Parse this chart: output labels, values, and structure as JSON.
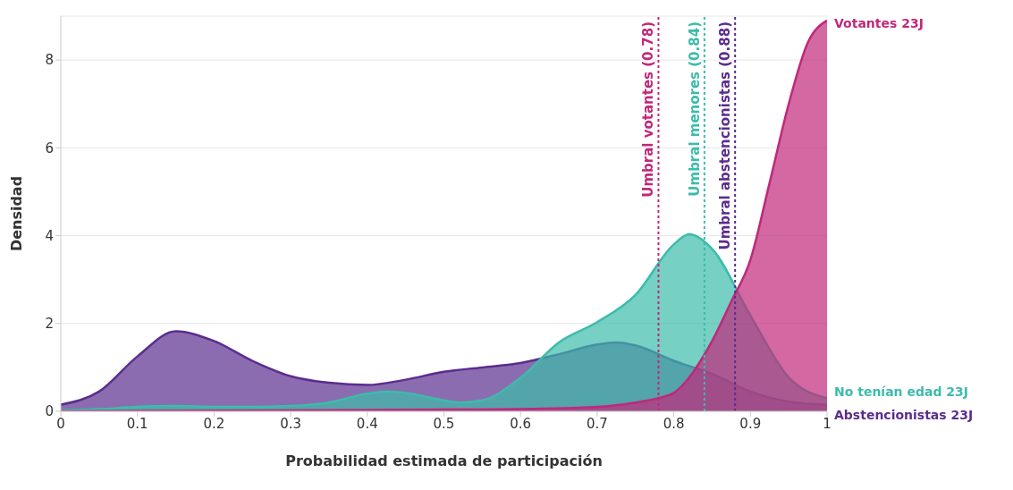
{
  "chart_data": {
    "type": "area",
    "xlabel": "Probabilidad estimada de participación",
    "ylabel": "Densidad",
    "xlim": [
      0,
      1
    ],
    "xticks": [
      0,
      0.1,
      0.2,
      0.3,
      0.4,
      0.5,
      0.6,
      0.7,
      0.8,
      0.9,
      1
    ],
    "ylim": [
      0,
      9
    ],
    "yticks": [
      0,
      2,
      4,
      6,
      8
    ],
    "grid": "y",
    "legend": false,
    "series": [
      {
        "name": "Abstencionistas 23J",
        "color": "#5b2d8e",
        "x": [
          0,
          0.05,
          0.1,
          0.15,
          0.2,
          0.25,
          0.3,
          0.35,
          0.4,
          0.45,
          0.5,
          0.55,
          0.6,
          0.65,
          0.7,
          0.725,
          0.75,
          0.8,
          0.85,
          0.9,
          0.95,
          1
        ],
        "values": [
          0.15,
          0.45,
          1.25,
          1.82,
          1.6,
          1.15,
          0.8,
          0.65,
          0.6,
          0.72,
          0.9,
          1.0,
          1.1,
          1.3,
          1.52,
          1.57,
          1.5,
          1.15,
          0.85,
          0.45,
          0.22,
          0.15
        ]
      },
      {
        "name": "No tenían edad 23J",
        "color": "#3cbcaa",
        "x": [
          0,
          0.05,
          0.1,
          0.15,
          0.2,
          0.25,
          0.3,
          0.35,
          0.4,
          0.425,
          0.45,
          0.5,
          0.52,
          0.55,
          0.6,
          0.65,
          0.7,
          0.75,
          0.8,
          0.82,
          0.85,
          0.9,
          0.95,
          1
        ],
        "values": [
          0.02,
          0.05,
          0.1,
          0.12,
          0.1,
          0.1,
          0.12,
          0.2,
          0.4,
          0.45,
          0.42,
          0.25,
          0.2,
          0.25,
          0.76,
          1.57,
          2.03,
          2.65,
          3.8,
          4.03,
          3.7,
          2.18,
          0.77,
          0.3
        ]
      },
      {
        "name": "Votantes 23J",
        "color": "#c0287a",
        "x": [
          0,
          0.3,
          0.5,
          0.6,
          0.7,
          0.75,
          0.78,
          0.8,
          0.85,
          0.875,
          0.9,
          0.925,
          0.95,
          0.975,
          1
        ],
        "values": [
          0,
          0.02,
          0.04,
          0.05,
          0.1,
          0.2,
          0.3,
          0.42,
          1.6,
          2.5,
          3.45,
          5.2,
          7.0,
          8.4,
          8.9
        ]
      }
    ],
    "ref_lines": [
      {
        "axis": "x",
        "value": 0.78,
        "label": "Umbral votantes (0.78)",
        "color": "#c0287a",
        "line_style": "dotted"
      },
      {
        "axis": "x",
        "value": 0.84,
        "label": "Umbral menores (0.84)",
        "color": "#3cbcaa",
        "line_style": "dotted"
      },
      {
        "axis": "x",
        "value": 0.88,
        "label": "Umbral abstencionistas (0.88)",
        "color": "#5b2d8e",
        "line_style": "dotted"
      }
    ]
  }
}
